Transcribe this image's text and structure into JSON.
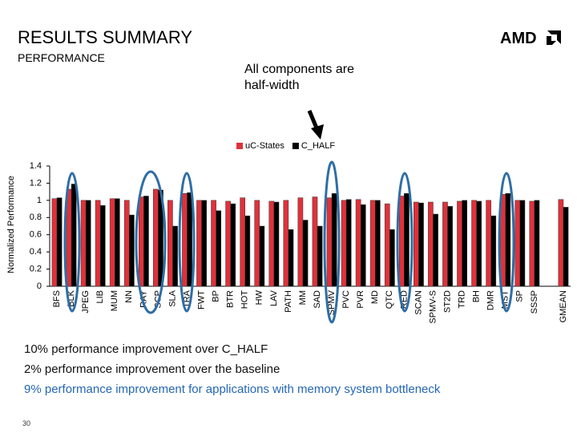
{
  "header": {
    "title": "RESULTS SUMMARY",
    "subtitle": "PERFORMANCE",
    "logo": "AMD"
  },
  "chart_data": {
    "type": "bar",
    "annotation": "All components are half-width",
    "ylabel": "Normalized Performance",
    "categories": [
      "BFS",
      "BLK",
      "JPEG",
      "LIB",
      "MUM",
      "NN",
      "RAY",
      "SCP",
      "SLA",
      "TRA",
      "FWT",
      "BP",
      "BTR",
      "HOT",
      "HW",
      "LAV",
      "PATH",
      "MM",
      "SAD",
      "SPMV",
      "PVC",
      "PVR",
      "MD",
      "QTC",
      "RED",
      "SCAN",
      "SPMV-S",
      "ST2D",
      "TRD",
      "BH",
      "DMR",
      "MST",
      "SP",
      "SSSP",
      null,
      "GMEAN"
    ],
    "series": [
      {
        "name": "uC-States",
        "color": "#e0313a",
        "values": [
          1.02,
          1.13,
          1.0,
          1.0,
          1.02,
          1.0,
          1.04,
          1.13,
          1.0,
          1.08,
          1.0,
          1.0,
          0.99,
          1.03,
          1.0,
          0.99,
          1.0,
          1.03,
          1.04,
          1.03,
          1.0,
          1.01,
          1.0,
          0.96,
          1.05,
          0.98,
          0.98,
          0.98,
          0.99,
          1.0,
          1.0,
          1.07,
          1.0,
          0.99,
          null,
          1.01
        ]
      },
      {
        "name": "C_HALF",
        "color": "#000000",
        "values": [
          1.03,
          1.19,
          1.0,
          0.94,
          1.02,
          0.83,
          1.05,
          1.12,
          0.7,
          1.09,
          1.0,
          0.88,
          0.96,
          0.82,
          0.7,
          0.98,
          0.66,
          0.77,
          0.7,
          1.08,
          1.01,
          0.95,
          1.0,
          0.66,
          1.08,
          0.97,
          0.84,
          0.93,
          1.0,
          0.99,
          0.82,
          1.08,
          1.0,
          1.0,
          null,
          0.92
        ]
      }
    ],
    "ylim": [
      0,
      1.4
    ],
    "yticks": [
      0,
      0.2,
      0.4,
      0.6,
      0.8,
      1,
      1.2,
      1.4
    ],
    "legend": "top",
    "grid": false
  },
  "notes": [
    "10% performance improvement over C_HALF",
    "2% performance improvement over the baseline",
    "9% performance improvement for applications with memory system bottleneck"
  ],
  "slide_number": 30
}
